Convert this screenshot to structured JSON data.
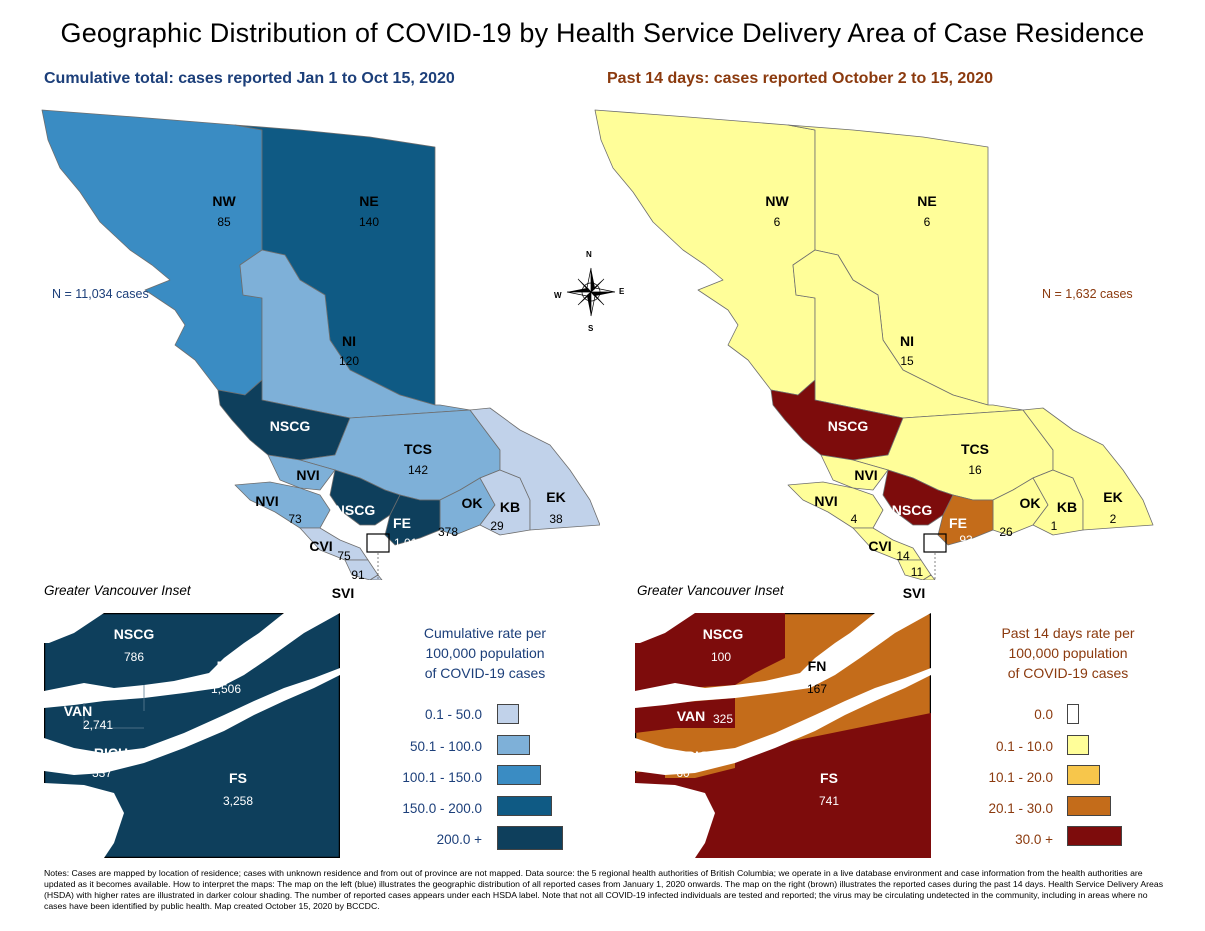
{
  "title": "Geographic Distribution of COVID-19 by Health Service Delivery Area of Case Residence",
  "left_map": {
    "subtitle": "Cumulative total: cases reported Jan 1 to Oct 15, 2020",
    "n_label": "N = 11,034 cases",
    "regions": [
      {
        "code": "NW",
        "value": "85",
        "color": "#3a8cc3"
      },
      {
        "code": "NE",
        "value": "140",
        "color": "#0f5a84"
      },
      {
        "code": "NI",
        "value": "120",
        "color": "#7eb0d8"
      },
      {
        "code": "NSCG",
        "value": "",
        "color": "#0e3f5c"
      },
      {
        "code": "TCS",
        "value": "142",
        "color": "#7eb0d8"
      },
      {
        "code": "NVI",
        "value": "",
        "color": "#7eb0d8"
      },
      {
        "code": "NVI",
        "value": "73",
        "color": "#7eb0d8"
      },
      {
        "code": "NSCG",
        "value": "",
        "color": "#0e3f5c"
      },
      {
        "code": "OK",
        "value": "378",
        "color": "#7eb0d8"
      },
      {
        "code": "KB",
        "value": "29",
        "color": "#c1d2ea"
      },
      {
        "code": "EK",
        "value": "38",
        "color": "#c1d2ea"
      },
      {
        "code": "FE",
        "value": "1,016",
        "color": "#0e3f5c"
      },
      {
        "code": "CVI",
        "value": "75",
        "color": "#c1d2ea"
      },
      {
        "code": "",
        "value": "91",
        "color": "#c1d2ea"
      },
      {
        "code": "SVI",
        "value": "",
        "color": "#c1d2ea"
      }
    ],
    "inset_title": "Greater Vancouver Inset",
    "inset_regions": [
      {
        "code": "NSCG",
        "value": "786"
      },
      {
        "code": "FN",
        "value": "1,506"
      },
      {
        "code": "VAN",
        "value": "2,741"
      },
      {
        "code": "RICH",
        "value": "337"
      },
      {
        "code": "FS",
        "value": "3,258"
      }
    ],
    "legend_title": [
      "Cumulative rate per",
      "100,000 population",
      "of COVID-19 cases"
    ],
    "legend": [
      {
        "label": "0.1 - 50.0",
        "color": "#c1d2ea"
      },
      {
        "label": "50.1 - 100.0",
        "color": "#7eb0d8"
      },
      {
        "label": "100.1 - 150.0",
        "color": "#3a8cc3"
      },
      {
        "label": "150.0 - 200.0",
        "color": "#0f5a84"
      },
      {
        "label": "200.0 +",
        "color": "#0e3f5c"
      }
    ]
  },
  "right_map": {
    "subtitle": "Past 14 days: cases reported October 2 to 15, 2020",
    "n_label": "N = 1,632 cases",
    "regions": [
      {
        "code": "NW",
        "value": "6",
        "color": "#fffe99"
      },
      {
        "code": "NE",
        "value": "6",
        "color": "#fffe99"
      },
      {
        "code": "NI",
        "value": "15",
        "color": "#fffe99"
      },
      {
        "code": "NSCG",
        "value": "",
        "color": "#7d0c0c"
      },
      {
        "code": "TCS",
        "value": "16",
        "color": "#fffe99"
      },
      {
        "code": "NVI",
        "value": "",
        "color": "#fffe99"
      },
      {
        "code": "NVI",
        "value": "4",
        "color": "#fffe99"
      },
      {
        "code": "NSCG",
        "value": "",
        "color": "#7d0c0c"
      },
      {
        "code": "OK",
        "value": "26",
        "color": "#fffe99"
      },
      {
        "code": "KB",
        "value": "1",
        "color": "#fffe99"
      },
      {
        "code": "EK",
        "value": "2",
        "color": "#fffe99"
      },
      {
        "code": "FE",
        "value": "93",
        "color": "#c46c1a"
      },
      {
        "code": "CVI",
        "value": "14",
        "color": "#fffe99"
      },
      {
        "code": "",
        "value": "11",
        "color": "#fffe99"
      },
      {
        "code": "SVI",
        "value": "",
        "color": "#fffe99"
      }
    ],
    "inset_title": "Greater Vancouver Inset",
    "inset_regions": [
      {
        "code": "NSCG",
        "value": "100"
      },
      {
        "code": "FN",
        "value": "167"
      },
      {
        "code": "VAN",
        "value": "325"
      },
      {
        "code": "RICH",
        "value": "60"
      },
      {
        "code": "FS",
        "value": "741"
      }
    ],
    "legend_title": [
      "Past 14 days rate per",
      "100,000 population",
      "of COVID-19 cases"
    ],
    "legend": [
      {
        "label": "0.0",
        "color": "#ffffff"
      },
      {
        "label": "0.1 - 10.0",
        "color": "#fffe99"
      },
      {
        "label": "10.1 - 20.0",
        "color": "#f7c64b"
      },
      {
        "label": "20.1 - 30.0",
        "color": "#c46c1a"
      },
      {
        "label": "30.0 +",
        "color": "#7d0c0c"
      }
    ]
  },
  "compass": {
    "n": "N",
    "s": "S",
    "e": "E",
    "w": "W"
  },
  "notes": "Notes: Cases are mapped by location of residence; cases with unknown residence and from out of province are not mapped. Data source: the 5 regional health authorities of British Columbia; we operate in a live database environment and case information from the health authorities are updated as it becomes available. How to interpret the maps: The map on the left (blue) illustrates the geographic distribution of all reported cases from January 1, 2020 onwards. The map on the right (brown) illustrates the reported cases during the past 14 days. Health Service Delivery Areas (HSDA) with higher rates are illustrated in darker colour shading. The number of reported cases appears under each HSDA label. Note that not all COVID-19 infected individuals are tested and reported; the virus may be circulating undetected in the community, including in areas where no cases have been identified by public health. Map created October 15, 2020 by BCCDC.",
  "colors": {
    "left_inset_fill": "#0e3f5c",
    "left_title": "#1c3f7a",
    "right_title": "#8b3a0e",
    "right_inset_nscg": "#7d0c0c",
    "right_inset_fn": "#c46c1a",
    "right_inset_van": "#7d0c0c",
    "right_inset_rich": "#c46c1a",
    "right_inset_fs": "#7d0c0c"
  }
}
